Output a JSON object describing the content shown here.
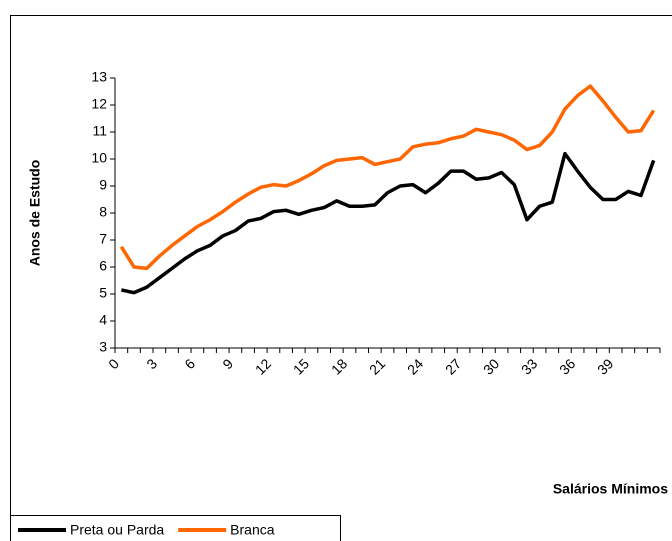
{
  "chart_data": {
    "type": "line",
    "y_label": "Anos de Estudo",
    "x_label": "Salários Mínimos",
    "categories": [
      "0",
      null,
      null,
      "3",
      null,
      null,
      "6",
      null,
      null,
      "9",
      null,
      null,
      "12",
      null,
      null,
      "15",
      null,
      null,
      "18",
      null,
      null,
      "21",
      null,
      null,
      "24",
      null,
      null,
      "27",
      null,
      null,
      "30",
      null,
      null,
      "33",
      null,
      null,
      "36",
      null,
      null,
      "39",
      null,
      null,
      null
    ],
    "series": [
      {
        "name": "Preta ou Parda",
        "color": "#000000",
        "values": [
          5.15,
          5.05,
          5.25,
          5.6,
          5.95,
          6.3,
          6.6,
          6.8,
          7.15,
          7.35,
          7.7,
          7.8,
          8.05,
          8.1,
          7.95,
          8.1,
          8.2,
          8.45,
          8.25,
          8.25,
          8.3,
          8.75,
          9.0,
          9.05,
          8.75,
          9.1,
          9.55,
          9.55,
          9.25,
          9.3,
          9.5,
          9.05,
          7.75,
          8.25,
          8.4,
          10.2,
          9.55,
          8.95,
          8.5,
          8.5,
          8.8,
          8.65,
          9.95
        ]
      },
      {
        "name": "Branca",
        "color": "#ff6600",
        "values": [
          6.75,
          6.0,
          5.95,
          6.4,
          6.8,
          7.15,
          7.5,
          7.75,
          8.05,
          8.4,
          8.7,
          8.95,
          9.05,
          9.0,
          9.2,
          9.45,
          9.75,
          9.95,
          10.0,
          10.05,
          9.8,
          9.9,
          10.0,
          10.45,
          10.55,
          10.6,
          10.75,
          10.85,
          11.1,
          11.0,
          10.9,
          10.7,
          10.35,
          10.5,
          11.0,
          11.85,
          12.35,
          12.7,
          12.15,
          11.55,
          11.0,
          11.05,
          11.8
        ]
      }
    ],
    "ylim": [
      3,
      13
    ],
    "yticks": [
      3,
      4,
      5,
      6,
      7,
      8,
      9,
      10,
      11,
      12,
      13
    ],
    "grid": false,
    "legend": "bottom-left"
  }
}
